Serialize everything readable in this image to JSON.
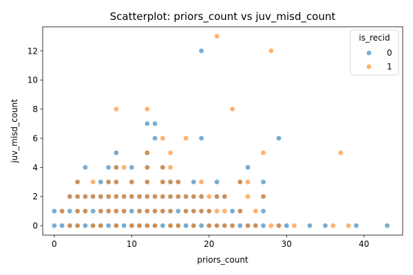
{
  "chart_data": {
    "type": "scatter",
    "title": "Scatterplot: priors_count vs juv_misd_count",
    "xlabel": "priors_count",
    "ylabel": "juv_misd_count",
    "xlim": [
      -1.5,
      45
    ],
    "ylim": [
      -0.65,
      13.65
    ],
    "xticks": [
      0,
      10,
      20,
      30,
      40
    ],
    "yticks": [
      0,
      2,
      4,
      6,
      8,
      10,
      12
    ],
    "grid": false,
    "legend": {
      "title": "is_recid",
      "position": "top-right"
    },
    "series": [
      {
        "name": "0",
        "color": "#1f77b4",
        "points": [
          [
            0,
            0
          ],
          [
            1,
            0
          ],
          [
            2,
            0
          ],
          [
            3,
            0
          ],
          [
            4,
            0
          ],
          [
            5,
            0
          ],
          [
            6,
            0
          ],
          [
            7,
            0
          ],
          [
            8,
            0
          ],
          [
            9,
            0
          ],
          [
            10,
            0
          ],
          [
            11,
            0
          ],
          [
            12,
            0
          ],
          [
            13,
            0
          ],
          [
            14,
            0
          ],
          [
            15,
            0
          ],
          [
            16,
            0
          ],
          [
            17,
            0
          ],
          [
            18,
            0
          ],
          [
            19,
            0
          ],
          [
            20,
            0
          ],
          [
            21,
            0
          ],
          [
            22,
            0
          ],
          [
            23,
            0
          ],
          [
            24,
            0
          ],
          [
            25,
            0
          ],
          [
            26,
            0
          ],
          [
            27,
            0
          ],
          [
            29,
            0
          ],
          [
            30,
            0
          ],
          [
            33,
            0
          ],
          [
            35,
            0
          ],
          [
            39,
            0
          ],
          [
            43,
            0
          ],
          [
            0,
            1
          ],
          [
            1,
            1
          ],
          [
            2,
            1
          ],
          [
            3,
            1
          ],
          [
            4,
            1
          ],
          [
            5,
            1
          ],
          [
            6,
            1
          ],
          [
            7,
            1
          ],
          [
            8,
            1
          ],
          [
            9,
            1
          ],
          [
            10,
            1
          ],
          [
            11,
            1
          ],
          [
            12,
            1
          ],
          [
            13,
            1
          ],
          [
            14,
            1
          ],
          [
            15,
            1
          ],
          [
            16,
            1
          ],
          [
            17,
            1
          ],
          [
            18,
            1
          ],
          [
            19,
            1
          ],
          [
            20,
            1
          ],
          [
            23,
            1
          ],
          [
            24,
            1
          ],
          [
            27,
            1
          ],
          [
            2,
            2
          ],
          [
            3,
            2
          ],
          [
            4,
            2
          ],
          [
            5,
            2
          ],
          [
            6,
            2
          ],
          [
            7,
            2
          ],
          [
            8,
            2
          ],
          [
            9,
            2
          ],
          [
            10,
            2
          ],
          [
            11,
            2
          ],
          [
            12,
            2
          ],
          [
            13,
            2
          ],
          [
            14,
            2
          ],
          [
            15,
            2
          ],
          [
            16,
            2
          ],
          [
            17,
            2
          ],
          [
            18,
            2
          ],
          [
            19,
            2
          ],
          [
            21,
            2
          ],
          [
            22,
            2
          ],
          [
            27,
            2
          ],
          [
            3,
            3
          ],
          [
            6,
            3
          ],
          [
            7,
            3
          ],
          [
            8,
            3
          ],
          [
            10,
            3
          ],
          [
            12,
            3
          ],
          [
            14,
            3
          ],
          [
            15,
            3
          ],
          [
            16,
            3
          ],
          [
            18,
            3
          ],
          [
            21,
            3
          ],
          [
            24,
            3
          ],
          [
            27,
            3
          ],
          [
            4,
            4
          ],
          [
            7,
            4
          ],
          [
            8,
            4
          ],
          [
            10,
            4
          ],
          [
            12,
            4
          ],
          [
            14,
            4
          ],
          [
            25,
            4
          ],
          [
            8,
            5
          ],
          [
            12,
            5
          ],
          [
            13,
            6
          ],
          [
            19,
            6
          ],
          [
            29,
            6
          ],
          [
            12,
            7
          ],
          [
            13,
            7
          ],
          [
            19,
            12
          ]
        ]
      },
      {
        "name": "1",
        "color": "#ff7f0e",
        "points": [
          [
            2,
            0
          ],
          [
            3,
            0
          ],
          [
            5,
            0
          ],
          [
            6,
            0
          ],
          [
            8,
            0
          ],
          [
            10,
            0
          ],
          [
            11,
            0
          ],
          [
            12,
            0
          ],
          [
            13,
            0
          ],
          [
            15,
            0
          ],
          [
            16,
            0
          ],
          [
            18,
            0
          ],
          [
            20,
            0
          ],
          [
            21,
            0
          ],
          [
            22,
            0
          ],
          [
            23,
            0
          ],
          [
            25,
            0
          ],
          [
            26,
            0
          ],
          [
            28,
            0
          ],
          [
            29,
            0
          ],
          [
            31,
            0
          ],
          [
            36,
            0
          ],
          [
            38,
            0
          ],
          [
            1,
            1
          ],
          [
            3,
            1
          ],
          [
            4,
            1
          ],
          [
            6,
            1
          ],
          [
            7,
            1
          ],
          [
            8,
            1
          ],
          [
            9,
            1
          ],
          [
            11,
            1
          ],
          [
            12,
            1
          ],
          [
            13,
            1
          ],
          [
            14,
            1
          ],
          [
            15,
            1
          ],
          [
            17,
            1
          ],
          [
            18,
            1
          ],
          [
            19,
            1
          ],
          [
            20,
            1
          ],
          [
            21,
            1
          ],
          [
            22,
            1
          ],
          [
            24,
            1
          ],
          [
            26,
            1
          ],
          [
            2,
            2
          ],
          [
            3,
            2
          ],
          [
            4,
            2
          ],
          [
            5,
            2
          ],
          [
            6,
            2
          ],
          [
            7,
            2
          ],
          [
            8,
            2
          ],
          [
            9,
            2
          ],
          [
            10,
            2
          ],
          [
            11,
            2
          ],
          [
            12,
            2
          ],
          [
            13,
            2
          ],
          [
            14,
            2
          ],
          [
            15,
            2
          ],
          [
            16,
            2
          ],
          [
            17,
            2
          ],
          [
            18,
            2
          ],
          [
            19,
            2
          ],
          [
            20,
            2
          ],
          [
            21,
            2
          ],
          [
            22,
            2
          ],
          [
            25,
            2
          ],
          [
            27,
            2
          ],
          [
            3,
            3
          ],
          [
            5,
            3
          ],
          [
            7,
            3
          ],
          [
            8,
            3
          ],
          [
            10,
            3
          ],
          [
            12,
            3
          ],
          [
            14,
            3
          ],
          [
            15,
            3
          ],
          [
            16,
            3
          ],
          [
            19,
            3
          ],
          [
            24,
            3
          ],
          [
            25,
            3
          ],
          [
            8,
            4
          ],
          [
            9,
            4
          ],
          [
            12,
            4
          ],
          [
            14,
            4
          ],
          [
            15,
            4
          ],
          [
            12,
            5
          ],
          [
            15,
            5
          ],
          [
            27,
            5
          ],
          [
            37,
            5
          ],
          [
            14,
            6
          ],
          [
            17,
            6
          ],
          [
            8,
            8
          ],
          [
            12,
            8
          ],
          [
            23,
            8
          ],
          [
            28,
            12
          ],
          [
            21,
            13
          ]
        ]
      }
    ]
  }
}
